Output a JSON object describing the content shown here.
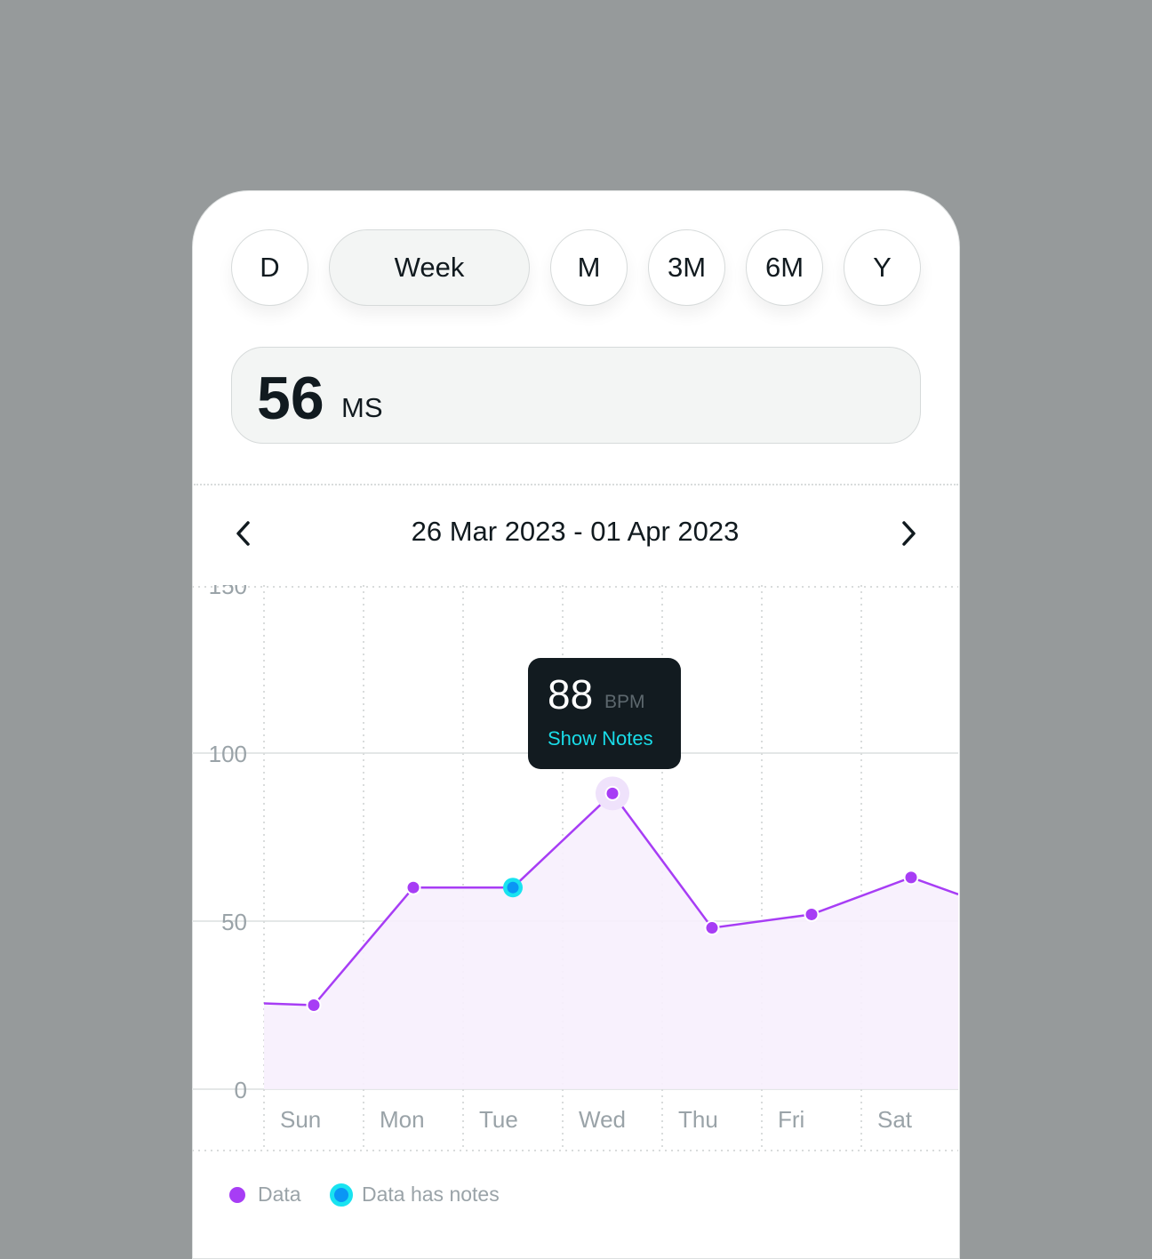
{
  "periods": [
    {
      "label": "D"
    },
    {
      "label": "Week",
      "active": true
    },
    {
      "label": "M"
    },
    {
      "label": "3M"
    },
    {
      "label": "6M"
    },
    {
      "label": "Y"
    }
  ],
  "metric": {
    "value": "56",
    "unit": "MS"
  },
  "date_range": "26 Mar 2023 - 01 Apr 2023",
  "tooltip": {
    "value": "88",
    "unit": "BPM",
    "action": "Show Notes"
  },
  "legend": {
    "data": "Data",
    "notes": "Data has notes"
  },
  "colors": {
    "data": "#a73df5",
    "notes_ring": "#19e3f0",
    "notes_fill": "#0a96f5",
    "fill": "#f7f0fd"
  },
  "chart_data": {
    "type": "line",
    "categories": [
      "Sun",
      "Mon",
      "Tue",
      "Wed",
      "Thu",
      "Fri",
      "Sat"
    ],
    "values": [
      25,
      60,
      60,
      88,
      48,
      52,
      63
    ],
    "has_notes": [
      false,
      false,
      true,
      false,
      false,
      false,
      false
    ],
    "selected": "Wed",
    "ylim": [
      0,
      150
    ],
    "yticks": [
      "0",
      "50",
      "100",
      "150"
    ],
    "grid": true
  }
}
